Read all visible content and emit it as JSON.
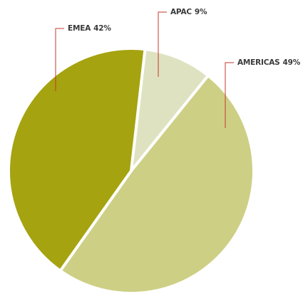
{
  "chart_data": {
    "type": "pie",
    "categories": [
      "APAC",
      "AMERICAS",
      "EMEA"
    ],
    "values": [
      9,
      49,
      42
    ],
    "value_labels": [
      "9%",
      "49%",
      "42%"
    ],
    "colors": [
      "#dfe2c0",
      "#cdcf85",
      "#a5a30f"
    ],
    "startangle": 6.5
  }
}
